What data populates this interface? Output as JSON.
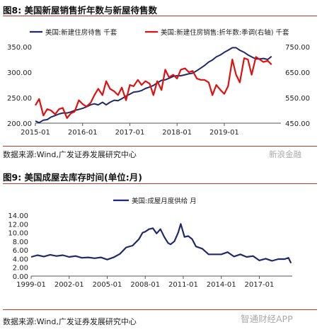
{
  "figure8": {
    "title": "图8:  美国新屋销售折年数与新屋待售数",
    "source": "数据来源:Wind,广发证券发展研究中心",
    "watermark": "新浪金融"
  },
  "figure9": {
    "title": "图9:  美国成屋去库存时间(单位:月)",
    "source": "数据来源:Wind,广发证券发展研究中心",
    "watermark": "智通财经APP"
  },
  "colors": {
    "navy": "#1f2a6b",
    "red": "#e01010"
  },
  "chart_data": [
    {
      "type": "line",
      "xlabel": "",
      "ylabel": "",
      "x_ticks": [
        "2015-01",
        "2016-01",
        "2017-01",
        "2018-01",
        "2019-01"
      ],
      "x_range": [
        2015.0,
        2020.2
      ],
      "ylim": [
        200,
        350
      ],
      "y_ticks": [
        "200.00",
        "250.00",
        "300.00",
        "350.00"
      ],
      "y2lim": [
        450,
        750
      ],
      "y2_ticks": [
        "450.00",
        "550.00",
        "650.00",
        "750.00"
      ],
      "legend_position": "top",
      "series": [
        {
          "name": "美国:新建住房待售 千套",
          "axis": "left",
          "color": "#1f2a6b",
          "x": [
            2015.0,
            2015.08,
            2015.17,
            2015.25,
            2015.33,
            2015.42,
            2015.5,
            2015.58,
            2015.67,
            2015.75,
            2015.83,
            2015.92,
            2016.0,
            2016.08,
            2016.17,
            2016.25,
            2016.33,
            2016.42,
            2016.5,
            2016.58,
            2016.67,
            2016.75,
            2016.83,
            2016.92,
            2017.0,
            2017.08,
            2017.17,
            2017.25,
            2017.33,
            2017.42,
            2017.5,
            2017.58,
            2017.67,
            2017.75,
            2017.83,
            2017.92,
            2018.0,
            2018.08,
            2018.17,
            2018.25,
            2018.33,
            2018.42,
            2018.5,
            2018.58,
            2018.67,
            2018.75,
            2018.83,
            2018.92,
            2019.0,
            2019.08,
            2019.17,
            2019.25,
            2019.33,
            2019.42,
            2019.5,
            2019.58,
            2019.67,
            2019.75,
            2019.83,
            2019.92,
            2020.0
          ],
          "values": [
            204,
            201,
            206,
            207,
            212,
            215,
            218,
            220,
            220,
            222,
            225,
            227,
            229,
            232,
            236,
            238,
            236,
            241,
            236,
            241,
            245,
            244,
            248,
            253,
            257,
            261,
            262,
            264,
            268,
            271,
            274,
            279,
            284,
            285,
            288,
            292,
            293,
            293,
            295,
            297,
            298,
            303,
            308,
            313,
            320,
            324,
            330,
            334,
            339,
            343,
            348,
            348,
            343,
            339,
            334,
            330,
            326,
            326,
            327,
            325,
            331
          ]
        },
        {
          "name": "美国:新建住房销售:折年数:季调(右轴) 千套",
          "axis": "right",
          "color": "#e01010",
          "x": [
            2015.0,
            2015.08,
            2015.17,
            2015.25,
            2015.33,
            2015.42,
            2015.5,
            2015.58,
            2015.67,
            2015.75,
            2015.83,
            2015.92,
            2016.0,
            2016.08,
            2016.17,
            2016.25,
            2016.33,
            2016.42,
            2016.5,
            2016.58,
            2016.67,
            2016.75,
            2016.83,
            2016.92,
            2017.0,
            2017.08,
            2017.17,
            2017.25,
            2017.33,
            2017.42,
            2017.5,
            2017.58,
            2017.67,
            2017.75,
            2017.83,
            2017.92,
            2018.0,
            2018.08,
            2018.17,
            2018.25,
            2018.33,
            2018.42,
            2018.5,
            2018.58,
            2018.67,
            2018.75,
            2018.83,
            2018.92,
            2019.0,
            2019.08,
            2019.17,
            2019.25,
            2019.33,
            2019.42,
            2019.5,
            2019.58,
            2019.67,
            2019.75,
            2019.83,
            2019.92,
            2020.0
          ],
          "values": [
            520,
            545,
            480,
            505,
            500,
            485,
            505,
            510,
            470,
            488,
            495,
            540,
            525,
            515,
            530,
            560,
            585,
            560,
            615,
            585,
            575,
            560,
            590,
            540,
            600,
            595,
            620,
            600,
            615,
            605,
            560,
            615,
            580,
            660,
            630,
            640,
            625,
            660,
            665,
            650,
            655,
            625,
            620,
            620,
            610,
            560,
            600,
            580,
            565,
            595,
            700,
            640,
            610,
            705,
            700,
            640,
            710,
            700,
            690,
            695,
            680
          ]
        }
      ]
    },
    {
      "type": "line",
      "xlabel": "",
      "ylabel": "",
      "x_ticks": [
        "1999-01",
        "2002-01",
        "2005-01",
        "2008-01",
        "2011-01",
        "2014-01",
        "2017-01"
      ],
      "x_range": [
        1999.0,
        2019.6
      ],
      "ylim": [
        0,
        14
      ],
      "y_ticks": [
        "0.00",
        "2.00",
        "4.00",
        "6.00",
        "8.00",
        "10.00",
        "12.00",
        "14.00"
      ],
      "legend_position": "top",
      "series": [
        {
          "name": "美国:成屋月度供给 月",
          "color": "#1f2a6b",
          "x": [
            1999.0,
            1999.5,
            2000.0,
            2000.5,
            2001.0,
            2001.5,
            2002.0,
            2002.5,
            2003.0,
            2003.5,
            2004.0,
            2004.5,
            2005.0,
            2005.5,
            2006.0,
            2006.5,
            2007.0,
            2007.5,
            2007.8,
            2008.0,
            2008.3,
            2008.6,
            2008.9,
            2009.2,
            2009.5,
            2009.8,
            2010.0,
            2010.3,
            2010.6,
            2010.8,
            2010.9,
            2011.1,
            2011.4,
            2011.7,
            2012.0,
            2012.5,
            2013.0,
            2013.5,
            2014.0,
            2014.5,
            2015.0,
            2015.5,
            2016.0,
            2016.5,
            2017.0,
            2017.5,
            2018.0,
            2018.5,
            2019.0,
            2019.3,
            2019.5
          ],
          "values": [
            4.4,
            4.8,
            4.5,
            4.9,
            4.6,
            4.8,
            4.4,
            4.6,
            4.2,
            4.3,
            4.1,
            4.3,
            3.8,
            4.3,
            5.1,
            6.6,
            7.0,
            8.5,
            10.0,
            10.2,
            10.8,
            11.0,
            9.8,
            10.8,
            9.0,
            7.6,
            7.3,
            8.0,
            10.0,
            12.0,
            11.0,
            9.0,
            9.2,
            8.5,
            6.8,
            6.3,
            5.0,
            5.0,
            5.0,
            5.5,
            4.5,
            5.0,
            4.4,
            4.6,
            3.6,
            4.0,
            3.5,
            3.9,
            3.9,
            4.2,
            3.0
          ]
        }
      ]
    }
  ]
}
